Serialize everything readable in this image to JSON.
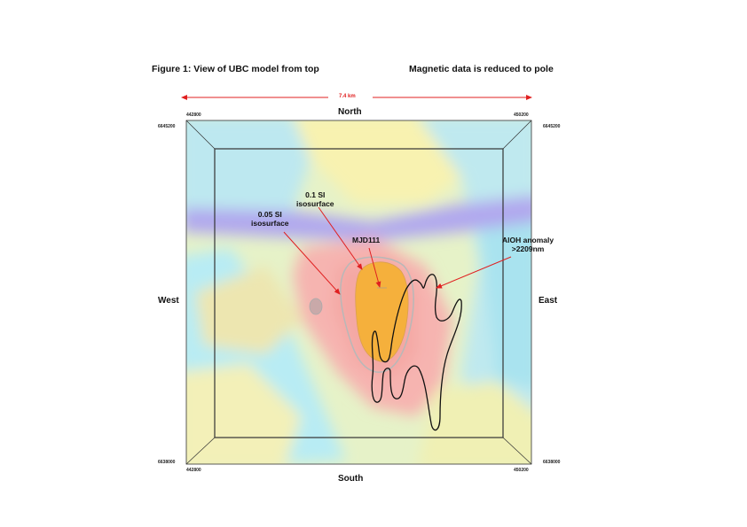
{
  "figure": {
    "title": "Figure 1: View of UBC model from top",
    "subtitle": "Magnetic data is reduced to pole",
    "distance_label": "7.4 km"
  },
  "directions": {
    "north": "North",
    "south": "South",
    "west": "West",
    "east": "East"
  },
  "coordinates": {
    "top_left_easting": "442800",
    "top_right_easting": "450200",
    "bottom_left_easting": "442800",
    "bottom_right_easting": "450200",
    "left_top_northing": "6645200",
    "right_top_northing": "6645200",
    "left_bottom_northing": "6638000",
    "right_bottom_northing": "6638000"
  },
  "annotations": {
    "iso_01": [
      "0.1 SI",
      "isosurface"
    ],
    "iso_005": [
      "0.05 SI",
      "isosurface"
    ],
    "drillhole": "MJD111",
    "aloh": [
      "AlOH anomaly",
      ">2209nm"
    ]
  },
  "colors": {
    "arrow": "#e02020",
    "isosurface_01": "#f5b03c",
    "magnetic_high": "#f4a0a0",
    "magnetic_low": "#a8a0f0"
  }
}
